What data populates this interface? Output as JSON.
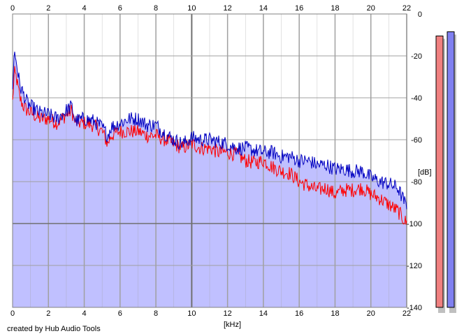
{
  "credit": "created by Hub Audio Tools",
  "colors": {
    "fill": "#c0c0ff",
    "series_left": "#ff0000",
    "series_right": "#0000c0",
    "meter_left": "#f08080",
    "meter_right": "#8080f0",
    "grid": "#a0a0a0",
    "grid_major": "#707070"
  },
  "chart_data": {
    "type": "line",
    "xlabel": "[kHz]",
    "ylabel": "[dB]",
    "xlim": [
      0,
      22
    ],
    "ylim": [
      -140,
      0
    ],
    "x_ticks": [
      "0",
      "2",
      "4",
      "6",
      "8",
      "10",
      "12",
      "14",
      "16",
      "18",
      "20",
      "22"
    ],
    "y_ticks": [
      "0",
      "-20",
      "-40",
      "-60",
      "-80",
      "-100",
      "-120",
      "-140"
    ],
    "grid": true,
    "x": [
      0.0,
      0.1,
      0.2,
      0.4,
      0.6,
      0.8,
      1.0,
      1.5,
      2.0,
      2.5,
      3.0,
      3.3,
      3.5,
      4.0,
      4.5,
      5.0,
      5.3,
      5.5,
      6.0,
      6.5,
      7.0,
      7.5,
      8.0,
      8.5,
      9.0,
      9.5,
      10.0,
      10.5,
      11.0,
      11.5,
      12.0,
      12.5,
      13.0,
      13.5,
      14.0,
      14.5,
      15.0,
      15.5,
      16.0,
      16.5,
      17.0,
      17.5,
      18.0,
      18.5,
      19.0,
      19.5,
      20.0,
      20.5,
      21.0,
      21.5,
      22.0
    ],
    "series": [
      {
        "values": [
          -42,
          -28,
          -30,
          -40,
          -44,
          -46,
          -47,
          -50,
          -50,
          -52,
          -48,
          -46,
          -52,
          -52,
          -53,
          -56,
          -62,
          -58,
          -56,
          -56,
          -56,
          -58,
          -58,
          -60,
          -62,
          -64,
          -62,
          -64,
          -64,
          -66,
          -66,
          -67,
          -70,
          -71,
          -70,
          -73,
          -75,
          -76,
          -80,
          -82,
          -84,
          -83,
          -86,
          -84,
          -84,
          -83,
          -86,
          -88,
          -91,
          -94,
          -100
        ]
      },
      {
        "values": [
          -34,
          -18,
          -22,
          -34,
          -38,
          -42,
          -44,
          -47,
          -48,
          -50,
          -46,
          -44,
          -51,
          -50,
          -51,
          -54,
          -58,
          -54,
          -52,
          -50,
          -50,
          -53,
          -53,
          -57,
          -60,
          -62,
          -59,
          -60,
          -60,
          -61,
          -62,
          -64,
          -64,
          -65,
          -66,
          -66,
          -68,
          -68,
          -70,
          -70,
          -72,
          -72,
          -74,
          -74,
          -75,
          -75,
          -78,
          -80,
          -81,
          -83,
          -92
        ]
      }
    ],
    "meters": [
      -10.5,
      -8.5
    ]
  }
}
